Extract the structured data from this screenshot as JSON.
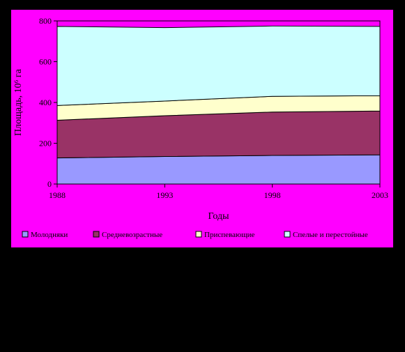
{
  "chart_data": {
    "type": "area",
    "stacked": true,
    "x": [
      "1988",
      "1993",
      "1998",
      "2003"
    ],
    "series": [
      {
        "name": "Молодняки",
        "values": [
          128,
          135,
          140,
          143
        ],
        "color": "#9999ff"
      },
      {
        "name": "Средневозрастные",
        "values": [
          185,
          200,
          213,
          215
        ],
        "color": "#993366"
      },
      {
        "name": "Приспевающие",
        "values": [
          72,
          72,
          77,
          75
        ],
        "color": "#ffffcc"
      },
      {
        "name": "Спелые и перестойные",
        "values": [
          388,
          360,
          345,
          340
        ],
        "color": "#ccffff"
      }
    ],
    "xlabel": "Годы",
    "ylabel": "Площадь, 10⁶ га",
    "ylim": [
      0,
      800
    ],
    "yticks": [
      "0",
      "200",
      "400",
      "600",
      "800"
    ],
    "grid": false,
    "legend_position": "bottom"
  },
  "colors": {
    "frame_background": "#ff00ff",
    "page_background": "#000000"
  }
}
